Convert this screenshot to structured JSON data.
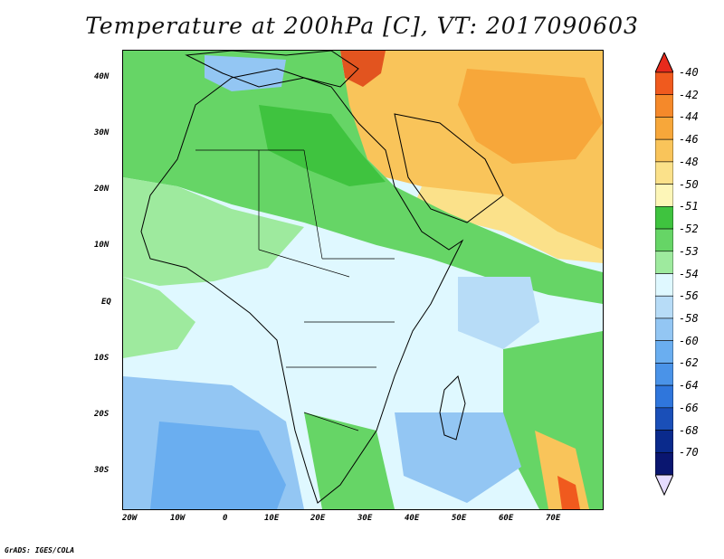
{
  "title": "Temperature at 200hPa [C], VT: 2017090603",
  "footer": "GrADS: IGES/COLA",
  "axes": {
    "x_ticks": [
      "20W",
      "10W",
      "0",
      "10E",
      "20E",
      "30E",
      "40E",
      "50E",
      "60E",
      "70E"
    ],
    "y_ticks": [
      "40N",
      "30N",
      "20N",
      "10N",
      "EQ",
      "10S",
      "20S",
      "30S"
    ]
  },
  "colorbar": {
    "labels": [
      "-40",
      "-42",
      "-44",
      "-46",
      "-48",
      "-50",
      "-51",
      "-52",
      "-53",
      "-54",
      "-56",
      "-58",
      "-60",
      "-62",
      "-64",
      "-66",
      "-68",
      "-70"
    ],
    "colors": [
      "#e82a1c",
      "#f05a1e",
      "#f5892a",
      "#f7a73a",
      "#f9c45a",
      "#fbe18a",
      "#fdf6b8",
      "#3fc33f",
      "#66d566",
      "#9eea9e",
      "#dff8ff",
      "#b7dcf7",
      "#93c6f3",
      "#6aaef0",
      "#4a93e8",
      "#2f76dc",
      "#1a4fb8",
      "#0a2a8c",
      "#0a1670",
      "#e6dcff"
    ]
  }
}
